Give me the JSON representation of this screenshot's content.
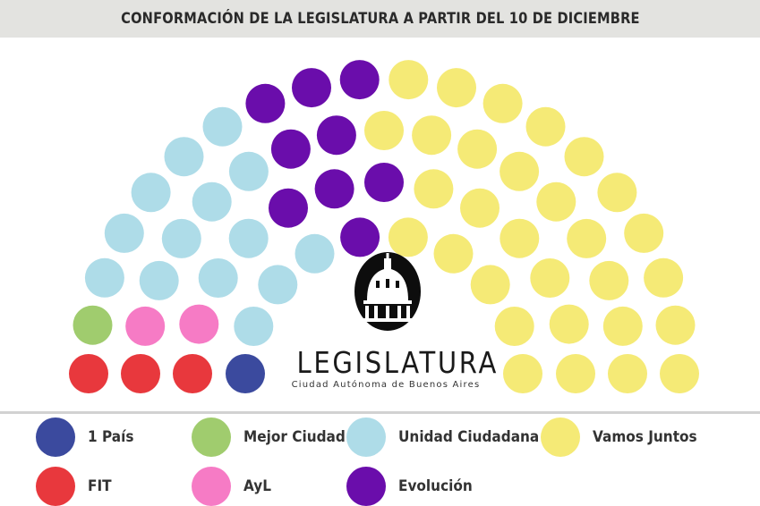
{
  "title": "CONFORMACIÓN DE LA LEGISLATURA A PARTIR DEL 10 DE DICIEMBRE",
  "logo": {
    "name": "LEGISLATURA",
    "subtitle": "Ciudad Autónoma de Buenos Aires"
  },
  "chart_data": {
    "type": "parliament",
    "total_seats": 60,
    "series": [
      {
        "name": "1 País",
        "value": 1,
        "color": "#3b4a9e"
      },
      {
        "name": "FIT",
        "value": 3,
        "color": "#e8383d"
      },
      {
        "name": "Mejor Ciudad",
        "value": 1,
        "color": "#a0cc6e"
      },
      {
        "name": "AyL",
        "value": 2,
        "color": "#f67bc5"
      },
      {
        "name": "Unidad Ciudadana",
        "value": 14,
        "color": "#aedce8"
      },
      {
        "name": "Evolución",
        "value": 9,
        "color": "#6a0dab"
      },
      {
        "name": "Vamos Juntos",
        "value": 30,
        "color": "#f5ea76"
      }
    ]
  },
  "legend": [
    {
      "label": "1 País",
      "color": "#3b4a9e"
    },
    {
      "label": "Mejor Ciudad",
      "color": "#a0cc6e"
    },
    {
      "label": "Unidad Ciudadana",
      "color": "#aedce8"
    },
    {
      "label": "Vamos Juntos",
      "color": "#f5ea76"
    },
    {
      "label": "FIT",
      "color": "#e8383d"
    },
    {
      "label": "AyL",
      "color": "#f67bc5"
    },
    {
      "label": "Evolución",
      "color": "#6a0dab"
    }
  ]
}
